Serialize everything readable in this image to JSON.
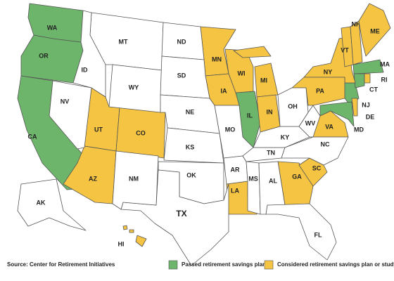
{
  "source": "Source: Center for Retirement Initiatives",
  "regions": [
    {
      "label": "Passed retirement savings plan",
      "color": "#6db56a",
      "states": [
        "WA",
        "OR",
        "CA",
        "IL",
        "NJ",
        "MD",
        "MA",
        "CT"
      ]
    },
    {
      "label": "Considered retirement savings plan or study",
      "color": "#f5c443",
      "states": [
        "MN",
        "WI",
        "MI",
        "IA",
        "IN",
        "UT",
        "CO",
        "AZ",
        "NY",
        "PA",
        "VT",
        "NH",
        "ME",
        "VA",
        "GA",
        "SC",
        "LA",
        "HI",
        "RI",
        "DE"
      ]
    },
    {
      "color": "#ffffff",
      "states": [
        "MT",
        "ID",
        "NV",
        "WY",
        "ND",
        "SD",
        "NE",
        "KS",
        "OK",
        "TX",
        "NM",
        "MO",
        "AR",
        "MS",
        "AL",
        "TN",
        "KY",
        "WV",
        "OH",
        "NC",
        "FL",
        "AK"
      ]
    }
  ]
}
